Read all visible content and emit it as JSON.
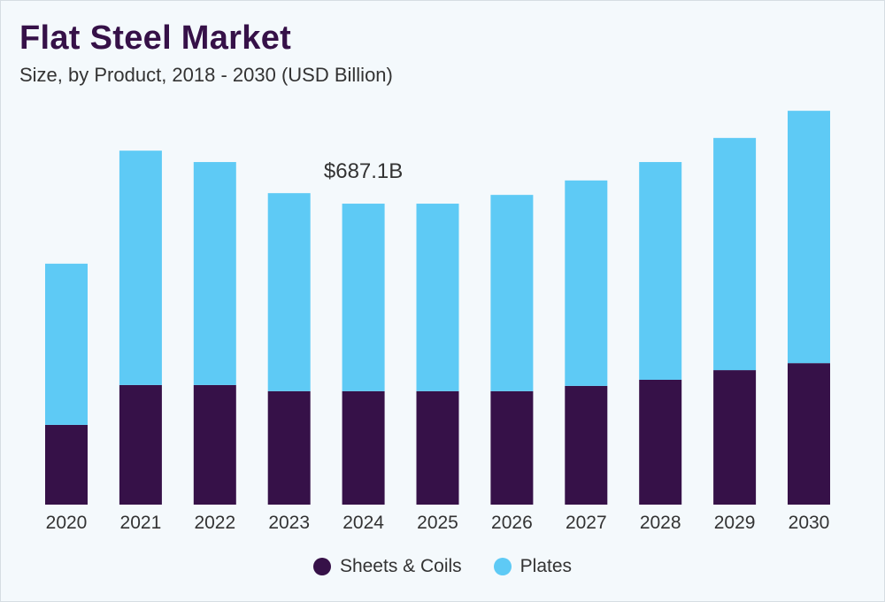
{
  "chart_data": {
    "type": "bar",
    "stacked": true,
    "title": "Flat Steel Market",
    "subtitle": "Size, by Product, 2018 - 2030 (USD Billion)",
    "categories": [
      "2020",
      "2021",
      "2022",
      "2023",
      "2024",
      "2025",
      "2026",
      "2027",
      "2028",
      "2029",
      "2030"
    ],
    "series": [
      {
        "name": "Sheets & Coils",
        "color": "#361148",
        "values": [
          182,
          273,
          273,
          259,
          259,
          259,
          259,
          271,
          285,
          307,
          323
        ]
      },
      {
        "name": "Plates",
        "color": "#5ecaf5",
        "values": [
          368,
          535,
          509,
          452,
          428,
          428,
          448,
          469,
          497,
          530,
          576
        ]
      }
    ],
    "annotation": {
      "category": "2024",
      "text": "$687.1B"
    },
    "ylim": [
      0,
      1000
    ],
    "grid": false,
    "legend": "bottom"
  }
}
